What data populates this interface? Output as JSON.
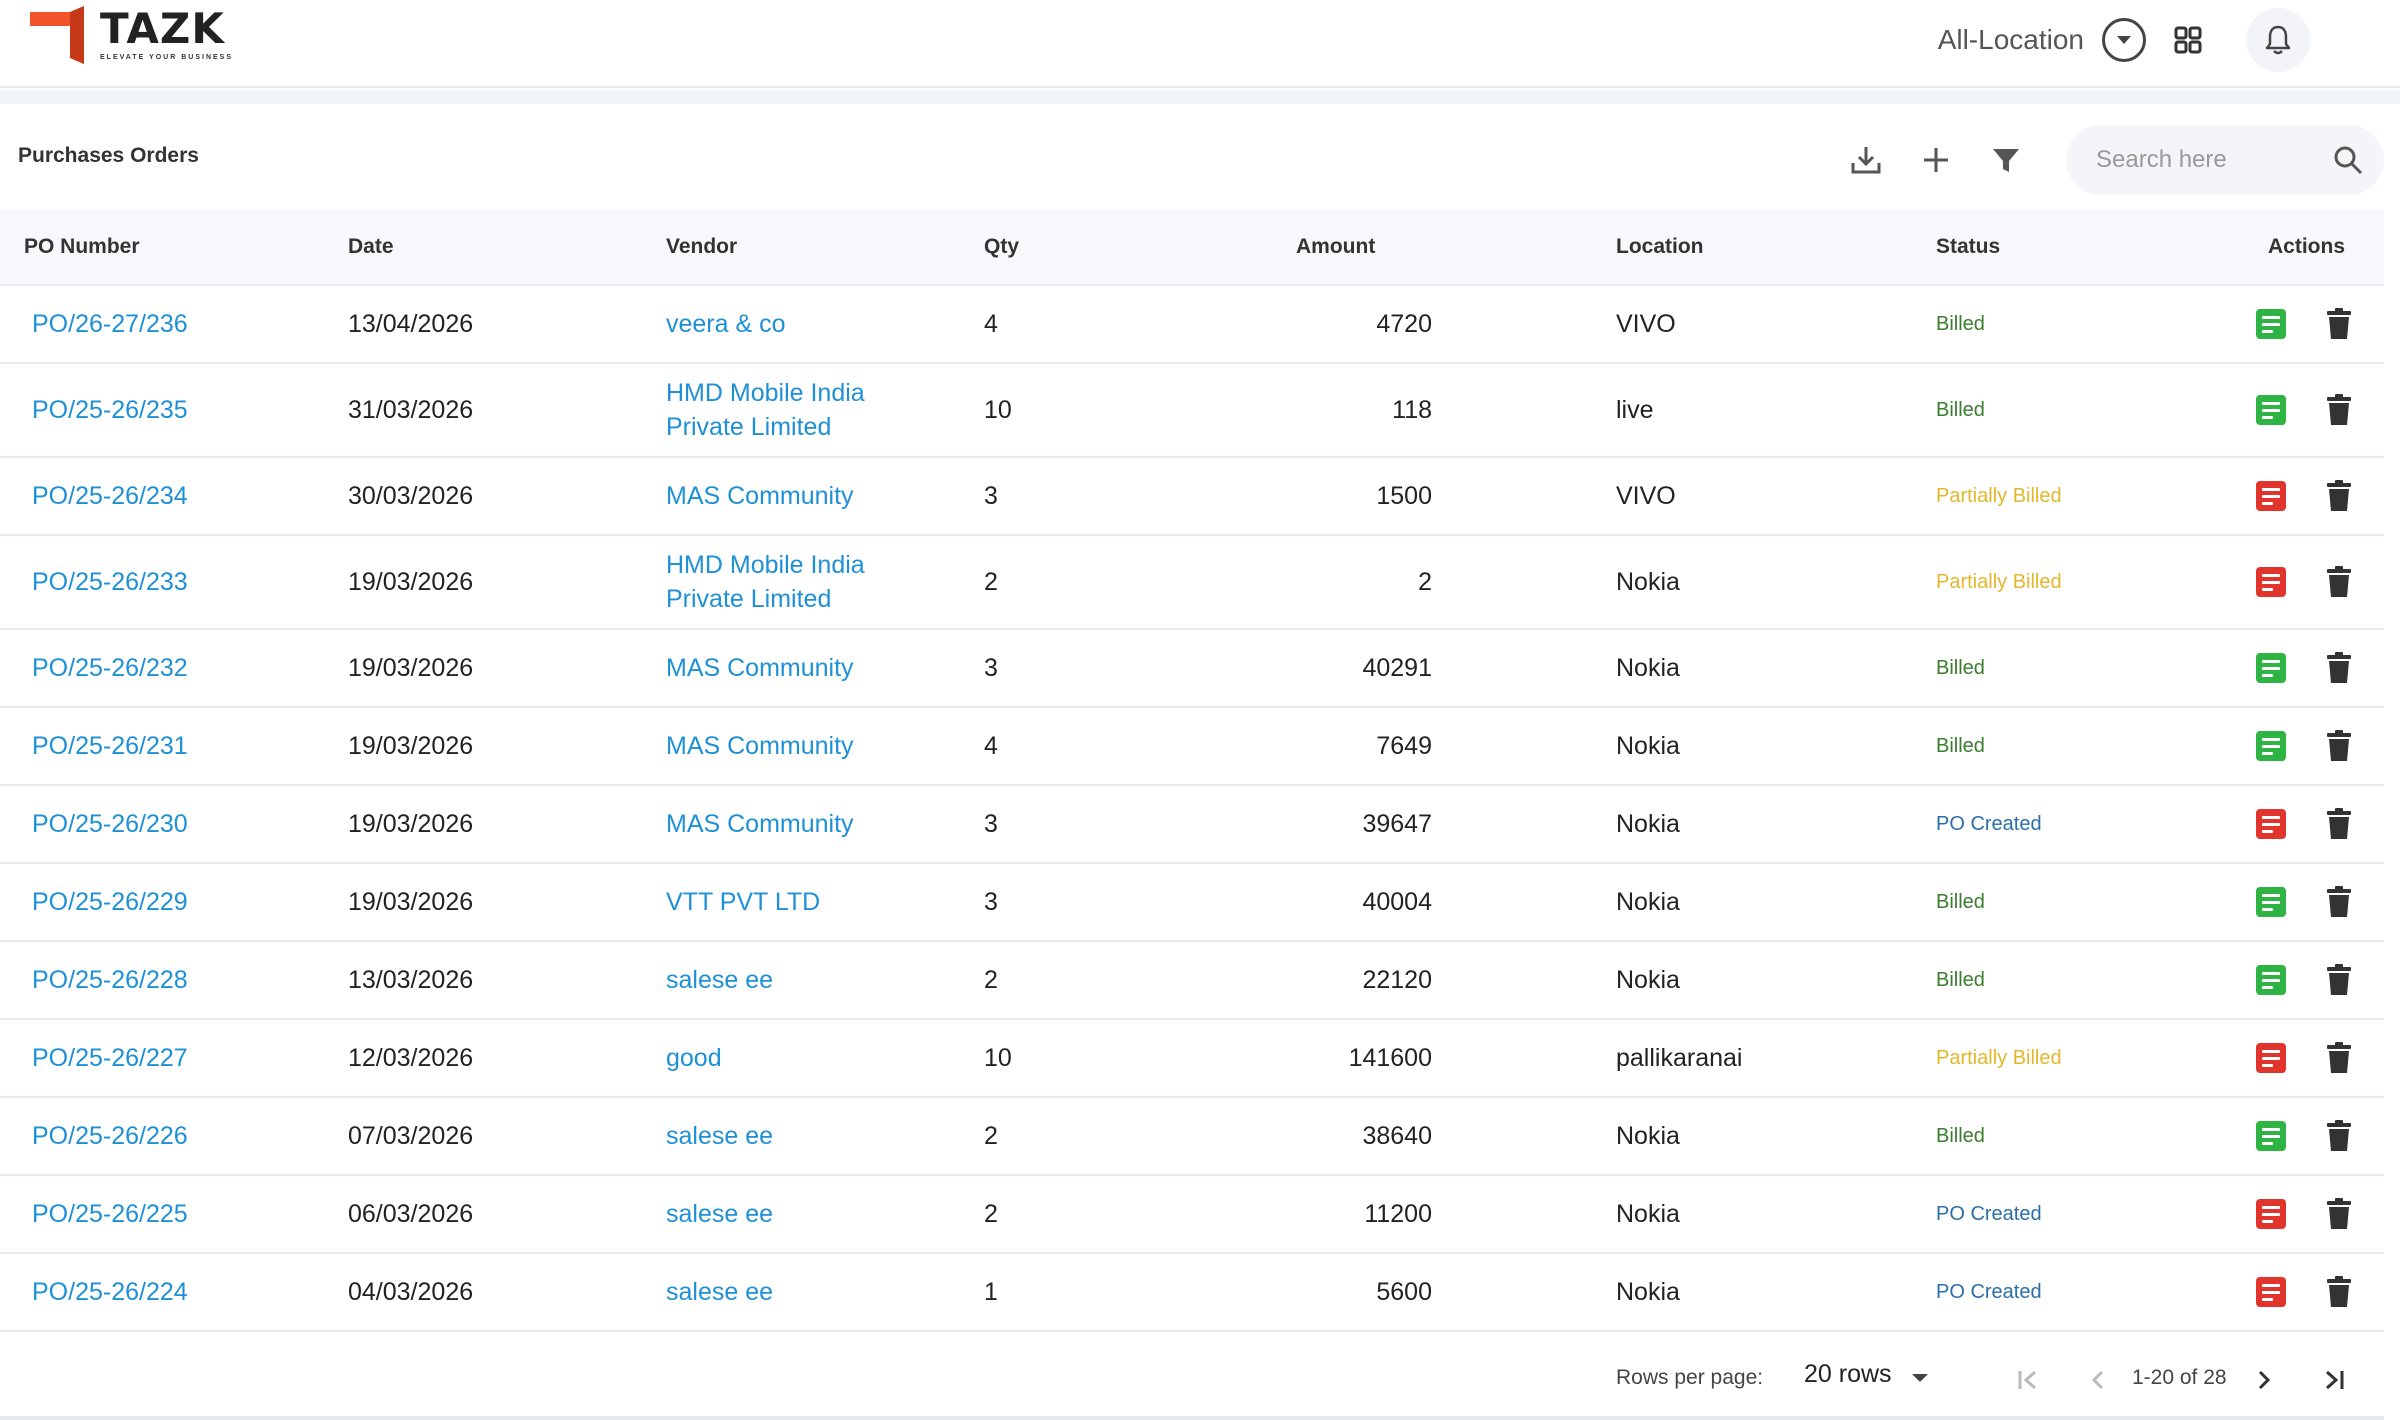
{
  "brand": {
    "name": "TAZK",
    "tagline": "ELEVATE YOUR BUSINESS"
  },
  "header": {
    "location_label": "All-Location"
  },
  "page": {
    "title": "Purchases Orders"
  },
  "search": {
    "placeholder": "Search here"
  },
  "table": {
    "columns": [
      "PO Number",
      "Date",
      "Vendor",
      "Qty",
      "Amount",
      "Location",
      "Status",
      "Actions"
    ],
    "rows": [
      {
        "po": "PO/26-27/236",
        "date": "13/04/2026",
        "vendor": "veera & co",
        "qty": "4",
        "amount": "4720",
        "location": "VIVO",
        "status": "Billed",
        "status_type": "billed",
        "doc": "green"
      },
      {
        "po": "PO/25-26/235",
        "date": "31/03/2026",
        "vendor": "HMD Mobile India Private Limited",
        "qty": "10",
        "amount": "118",
        "location": "live",
        "status": "Billed",
        "status_type": "billed",
        "doc": "green"
      },
      {
        "po": "PO/25-26/234",
        "date": "30/03/2026",
        "vendor": "MAS Community",
        "qty": "3",
        "amount": "1500",
        "location": "VIVO",
        "status": "Partially Billed",
        "status_type": "partial",
        "doc": "red"
      },
      {
        "po": "PO/25-26/233",
        "date": "19/03/2026",
        "vendor": "HMD Mobile India Private Limited",
        "qty": "2",
        "amount": "2",
        "location": "Nokia",
        "status": "Partially Billed",
        "status_type": "partial",
        "doc": "red"
      },
      {
        "po": "PO/25-26/232",
        "date": "19/03/2026",
        "vendor": "MAS Community",
        "qty": "3",
        "amount": "40291",
        "location": "Nokia",
        "status": "Billed",
        "status_type": "billed",
        "doc": "green"
      },
      {
        "po": "PO/25-26/231",
        "date": "19/03/2026",
        "vendor": "MAS Community",
        "qty": "4",
        "amount": "7649",
        "location": "Nokia",
        "status": "Billed",
        "status_type": "billed",
        "doc": "green"
      },
      {
        "po": "PO/25-26/230",
        "date": "19/03/2026",
        "vendor": "MAS Community",
        "qty": "3",
        "amount": "39647",
        "location": "Nokia",
        "status": "PO Created",
        "status_type": "created",
        "doc": "red"
      },
      {
        "po": "PO/25-26/229",
        "date": "19/03/2026",
        "vendor": "VTT PVT LTD",
        "qty": "3",
        "amount": "40004",
        "location": "Nokia",
        "status": "Billed",
        "status_type": "billed",
        "doc": "green"
      },
      {
        "po": "PO/25-26/228",
        "date": "13/03/2026",
        "vendor": "salese ee",
        "qty": "2",
        "amount": "22120",
        "location": "Nokia",
        "status": "Billed",
        "status_type": "billed",
        "doc": "green"
      },
      {
        "po": "PO/25-26/227",
        "date": "12/03/2026",
        "vendor": "good",
        "qty": "10",
        "amount": "141600",
        "location": "pallikaranai",
        "status": "Partially Billed",
        "status_type": "partial",
        "doc": "red"
      },
      {
        "po": "PO/25-26/226",
        "date": "07/03/2026",
        "vendor": "salese ee",
        "qty": "2",
        "amount": "38640",
        "location": "Nokia",
        "status": "Billed",
        "status_type": "billed",
        "doc": "green"
      },
      {
        "po": "PO/25-26/225",
        "date": "06/03/2026",
        "vendor": "salese ee",
        "qty": "2",
        "amount": "11200",
        "location": "Nokia",
        "status": "PO Created",
        "status_type": "created",
        "doc": "red"
      },
      {
        "po": "PO/25-26/224",
        "date": "04/03/2026",
        "vendor": "salese ee",
        "qty": "1",
        "amount": "5600",
        "location": "Nokia",
        "status": "PO Created",
        "status_type": "created",
        "doc": "red"
      }
    ]
  },
  "pagination": {
    "rows_label": "Rows per page:",
    "rows_value": "20 rows",
    "range": "1-20 of 28"
  },
  "colors": {
    "link": "#1e90d6",
    "billed": "#3a7d2e",
    "partial": "#e3b72a",
    "created": "#2b6ea8",
    "doc_green": "#2fb344",
    "doc_red": "#e0342d",
    "brand_orange": "#f0522a"
  }
}
